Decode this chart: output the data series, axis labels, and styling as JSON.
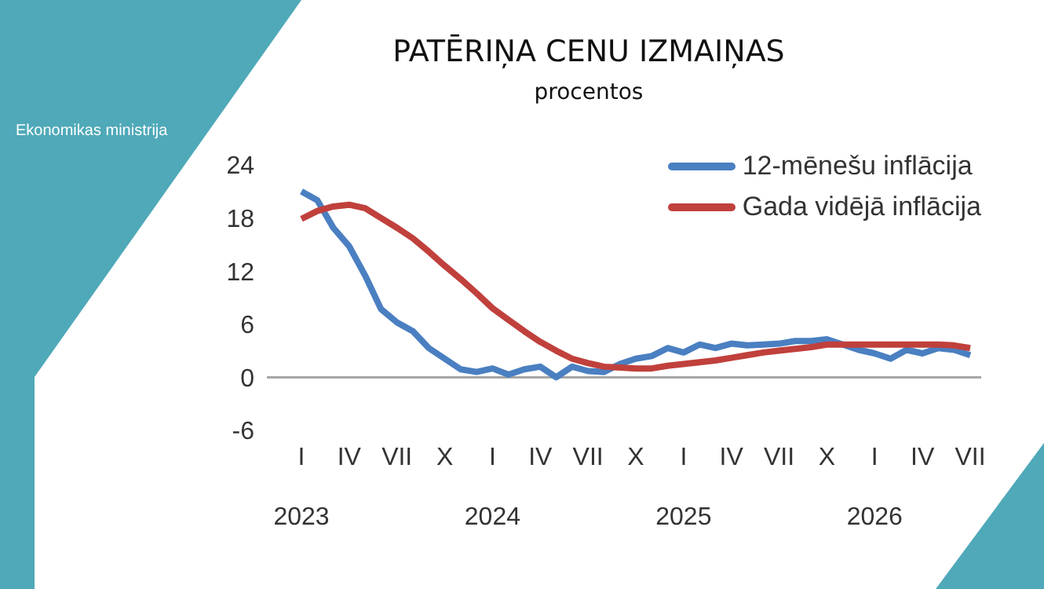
{
  "chart_data": {
    "type": "line",
    "title": "PATĒRIŅA CENU IZMAIŅAS",
    "subtitle": "procentos",
    "annotations": [
      "Ekonomikas ministrija"
    ],
    "categories": [
      "I\n2023",
      null,
      null,
      "IV",
      null,
      null,
      "VII",
      null,
      null,
      "X",
      null,
      null,
      "I\n2024",
      null,
      null,
      "IV",
      null,
      null,
      "VII",
      null,
      null,
      "X",
      null,
      null,
      "I\n2025",
      null,
      null,
      "IV",
      null,
      null,
      "VII",
      null,
      null,
      "X",
      null,
      null,
      "I\n2026",
      null,
      null,
      "IV",
      null,
      null,
      "VII"
    ],
    "series": [
      {
        "name": "12-mēnešu inflācija",
        "color": "#4a7fc1",
        "values": [
          21,
          20,
          16.9,
          14.8,
          11.5,
          7.7,
          6.2,
          5.2,
          3.3,
          2.1,
          0.9,
          0.6,
          1,
          0.3,
          0.9,
          1.2,
          0,
          1.2,
          0.7,
          0.6,
          1.5,
          2.1,
          2.4,
          3.3,
          2.8,
          3.7,
          3.3,
          3.8,
          3.6,
          3.7,
          3.8,
          4.1,
          4.1,
          4.3,
          3.7,
          3.1,
          2.7,
          2.1,
          3.1,
          2.7,
          3.3,
          3.1,
          2.5
        ]
      },
      {
        "name": "Gada vidējā inflācija",
        "color": "#c0403c",
        "values": [
          17.9,
          18.8,
          19.3,
          19.5,
          19.1,
          18,
          16.9,
          15.7,
          14.2,
          12.6,
          11.1,
          9.5,
          7.8,
          6.5,
          5.2,
          4,
          3,
          2.1,
          1.6,
          1.2,
          1.1,
          1,
          1,
          1.3,
          1.5,
          1.7,
          1.9,
          2.2,
          2.5,
          2.8,
          3,
          3.2,
          3.4,
          3.7,
          3.7,
          3.7,
          3.7,
          3.7,
          3.7,
          3.7,
          3.7,
          3.6,
          3.3
        ]
      }
    ],
    "ylim": [
      -6,
      24
    ],
    "yticks": [
      -6,
      0,
      6,
      12,
      18,
      24
    ],
    "grid": false,
    "legend": "top right",
    "marker": "none",
    "line_style": "solid",
    "ref_lines": [
      {
        "axis": "y",
        "value": 0,
        "color": "#a6a6a6"
      }
    ]
  }
}
